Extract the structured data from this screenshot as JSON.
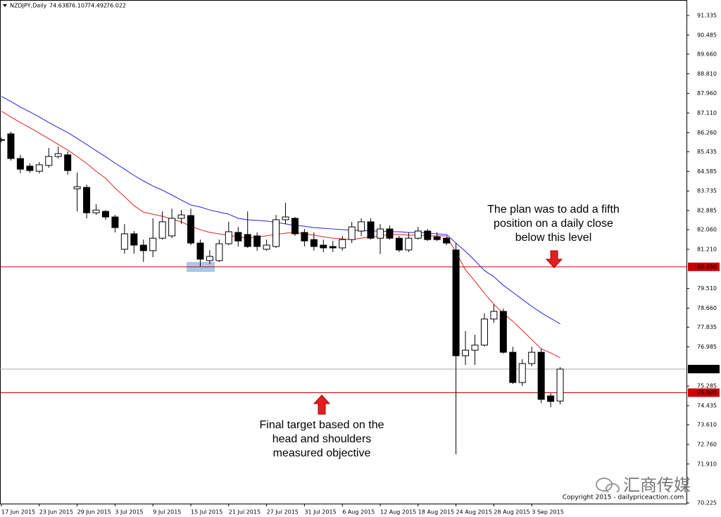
{
  "chart_data": {
    "type": "candlestick",
    "title": "NZDJPY,Daily",
    "categories": [
      "17 Jun 2015",
      null,
      null,
      null,
      "23 Jun 2015",
      null,
      null,
      null,
      "29 Jun 2015",
      null,
      null,
      null,
      "3 Jul 2015",
      null,
      null,
      null,
      "9 Jul 2015",
      null,
      null,
      null,
      "15 Jul 2015",
      null,
      null,
      null,
      "21 Jul 2015",
      null,
      null,
      null,
      "27 Jul 2015",
      null,
      null,
      null,
      "31 Jul 2015",
      null,
      null,
      null,
      "6 Aug 2015",
      null,
      null,
      null,
      "12 Aug 2015",
      null,
      null,
      null,
      "18 Aug 2015",
      null,
      null,
      null,
      "24 Aug 2015",
      null,
      null,
      null,
      "28 Aug 2015",
      null,
      null,
      null,
      "3 Sep 2015",
      null,
      null,
      null
    ],
    "ohlc": [
      [
        85.96,
        86.05,
        85.84,
        85.96
      ],
      [
        86.21,
        86.3,
        85.05,
        85.14
      ],
      [
        85.14,
        85.3,
        84.5,
        84.68
      ],
      [
        84.81,
        84.93,
        84.53,
        84.62
      ],
      [
        84.59,
        84.99,
        84.5,
        84.87
      ],
      [
        84.84,
        85.6,
        84.74,
        85.23
      ],
      [
        85.23,
        85.66,
        85.14,
        85.35
      ],
      [
        85.3,
        85.45,
        84.44,
        84.62
      ],
      [
        83.83,
        84.53,
        82.85,
        83.92
      ],
      [
        83.89,
        84.01,
        82.55,
        82.79
      ],
      [
        82.79,
        83.16,
        82.7,
        82.91
      ],
      [
        82.85,
        82.91,
        82.49,
        82.61
      ],
      [
        82.61,
        82.7,
        81.94,
        82.15
      ],
      [
        81.21,
        82.3,
        81.02,
        81.88
      ],
      [
        81.88,
        82.0,
        81.02,
        81.39
      ],
      [
        81.39,
        81.63,
        80.66,
        81.15
      ],
      [
        81.15,
        82.55,
        80.87,
        81.69
      ],
      [
        81.69,
        82.85,
        81.63,
        82.4
      ],
      [
        81.79,
        82.97,
        81.69,
        82.55
      ],
      [
        82.55,
        82.91,
        82.3,
        82.7
      ],
      [
        82.67,
        82.97,
        81.39,
        81.48
      ],
      [
        81.48,
        81.63,
        80.47,
        80.78
      ],
      [
        80.72,
        81.18,
        80.57,
        80.9
      ],
      [
        80.72,
        81.63,
        80.66,
        81.45
      ],
      [
        81.45,
        82.4,
        81.39,
        81.97
      ],
      [
        81.94,
        82.18,
        81.33,
        81.57
      ],
      [
        81.85,
        82.85,
        81.27,
        81.33
      ],
      [
        81.79,
        81.94,
        81.15,
        81.33
      ],
      [
        81.21,
        81.63,
        81.15,
        81.39
      ],
      [
        81.33,
        82.7,
        81.27,
        82.49
      ],
      [
        82.49,
        83.22,
        82.3,
        82.61
      ],
      [
        82.55,
        82.61,
        81.79,
        81.88
      ],
      [
        81.94,
        82.09,
        81.33,
        81.57
      ],
      [
        81.63,
        81.94,
        81.15,
        81.33
      ],
      [
        81.39,
        81.63,
        81.09,
        81.27
      ],
      [
        81.33,
        81.57,
        81.09,
        81.27
      ],
      [
        81.27,
        81.79,
        81.15,
        81.63
      ],
      [
        81.63,
        82.4,
        81.48,
        82.18
      ],
      [
        82.0,
        82.55,
        81.79,
        82.4
      ],
      [
        82.4,
        82.55,
        81.63,
        81.69
      ],
      [
        81.69,
        82.3,
        81.0,
        82.09
      ],
      [
        82.09,
        82.24,
        81.63,
        81.69
      ],
      [
        81.69,
        81.79,
        81.09,
        81.18
      ],
      [
        81.18,
        81.94,
        81.09,
        81.69
      ],
      [
        81.69,
        82.18,
        81.63,
        82.0
      ],
      [
        82.0,
        82.09,
        81.57,
        81.63
      ],
      [
        81.75,
        81.94,
        81.57,
        81.63
      ],
      [
        81.69,
        81.75,
        81.39,
        81.48
      ],
      [
        81.18,
        81.48,
        72.33,
        76.6
      ],
      [
        76.6,
        77.67,
        76.2,
        76.84
      ],
      [
        76.84,
        77.51,
        76.2,
        77.06
      ],
      [
        77.06,
        78.43,
        77.0,
        78.19
      ],
      [
        78.19,
        78.82,
        78.03,
        78.52
      ],
      [
        78.52,
        78.64,
        76.69,
        76.75
      ],
      [
        76.75,
        76.99,
        75.38,
        75.44
      ],
      [
        75.44,
        76.45,
        75.29,
        76.26
      ],
      [
        76.26,
        76.99,
        76.14,
        76.75
      ],
      [
        76.75,
        76.9,
        74.55,
        74.71
      ],
      [
        74.86,
        74.98,
        74.37,
        74.62
      ],
      [
        74.638,
        76.107,
        74.492,
        76.022
      ]
    ],
    "up_color": "#ffffff",
    "down_color": "#000000",
    "ma_lines": [
      {
        "color": "#2222dd",
        "values": [
          87.83,
          87.61,
          87.37,
          87.16,
          86.94,
          86.7,
          86.48,
          86.27,
          86.01,
          85.75,
          85.48,
          85.22,
          84.94,
          84.68,
          84.41,
          84.17,
          83.95,
          83.77,
          83.56,
          83.34,
          83.13,
          83.04,
          82.91,
          82.82,
          82.73,
          82.55,
          82.49,
          82.46,
          82.43,
          82.37,
          82.31,
          82.24,
          82.21,
          82.15,
          82.12,
          82.09,
          82.06,
          82.03,
          82.03,
          82.0,
          82.0,
          81.97,
          81.97,
          81.94,
          81.94,
          81.91,
          81.88,
          81.85,
          81.48,
          81.12,
          80.72,
          80.29,
          80.02,
          79.65,
          79.35,
          79.04,
          78.74,
          78.46,
          78.22,
          77.98
        ]
      },
      {
        "color": "#dd2222",
        "values": [
          87.19,
          86.94,
          86.7,
          86.48,
          86.24,
          86.0,
          85.75,
          85.51,
          85.23,
          84.93,
          84.59,
          84.29,
          83.86,
          83.49,
          83.1,
          82.82,
          82.73,
          82.64,
          82.52,
          82.4,
          82.21,
          82.06,
          81.94,
          81.88,
          81.82,
          81.75,
          81.69,
          81.75,
          81.79,
          81.85,
          81.91,
          81.94,
          81.88,
          81.82,
          81.75,
          81.69,
          81.66,
          81.63,
          81.69,
          81.75,
          81.79,
          81.85,
          81.85,
          81.82,
          81.82,
          81.79,
          81.79,
          81.79,
          81.08,
          80.32,
          79.83,
          79.31,
          78.83,
          78.43,
          78.09,
          77.7,
          77.3,
          76.9,
          76.72,
          76.51
        ]
      }
    ],
    "levels": [
      {
        "value": 80.45,
        "label": "80.450",
        "color": "#cc0000"
      },
      {
        "value": 76.022,
        "color": "#aaaaaa",
        "label_bg": "#000000"
      },
      {
        "value": 75,
        "label": "75.000",
        "color": "#cc0000"
      }
    ],
    "ylim": [
      70.195,
      92.006
    ],
    "yticks": [
      91.335,
      90.485,
      {
        "value": 89.66,
        "label": "89.660"
      },
      {
        "value": 88.81,
        "label": "88.810"
      },
      {
        "value": 87.96,
        "label": "87.960"
      },
      {
        "value": 87.11,
        "label": "87.110"
      },
      {
        "value": 86.26,
        "label": "86.260"
      },
      85.435,
      84.585,
      83.735,
      82.885,
      {
        "value": 82.06,
        "label": "82.060"
      },
      {
        "value": 81.21,
        "label": "81.210"
      },
      {
        "value": 79.51,
        "label": "79.510"
      },
      {
        "value": 78.66,
        "label": "78.660"
      },
      77.835,
      76.985,
      75.285,
      74.435,
      {
        "value": 73.61,
        "label": "73.610"
      },
      {
        "value": 72.76,
        "label": "72.760"
      },
      {
        "value": 71.91,
        "label": "71.910"
      },
      70.225
    ],
    "grid": false,
    "annotations": [
      {
        "lines": [
          "The plan was to add a fifth",
          "position on a daily close",
          "below this level"
        ]
      },
      {
        "lines": [
          "Final target based on the",
          "head and shoulders",
          "measured objective"
        ]
      }
    ],
    "copyright": "Copyright 2015 - dailypriceaction.com",
    "watermark": "汇商传媒"
  }
}
